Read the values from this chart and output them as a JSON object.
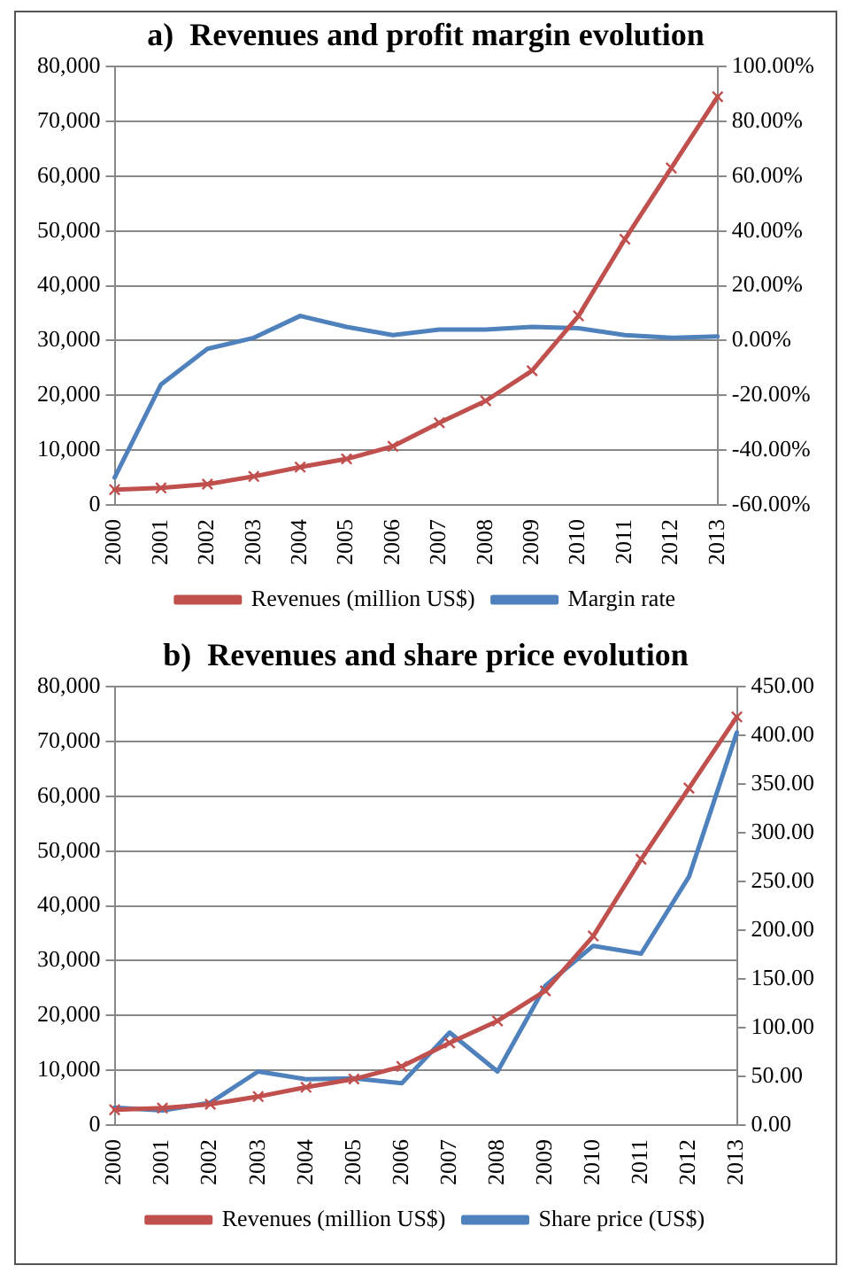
{
  "chart_data": [
    {
      "type": "line",
      "title": "a)  Revenues and profit margin evolution",
      "categories": [
        "2000",
        "2001",
        "2002",
        "2003",
        "2004",
        "2005",
        "2006",
        "2007",
        "2008",
        "2009",
        "2010",
        "2011",
        "2012",
        "2013"
      ],
      "series": [
        {
          "name": "Revenues (million US$)",
          "color": "#c0504d",
          "marker": "cross",
          "values": [
            2800,
            3100,
            3800,
            5200,
            6900,
            8400,
            10700,
            15000,
            19000,
            24500,
            34500,
            48500,
            61500,
            74500
          ]
        },
        {
          "name": "Margin rate",
          "color": "#4f81bd",
          "marker": "none",
          "axis": "y2",
          "values": [
            -50,
            -16,
            -3,
            1,
            9,
            5,
            2,
            4,
            4,
            5,
            4.5,
            2,
            1,
            1.5
          ]
        }
      ],
      "ylim": [
        0,
        80000
      ],
      "yticks": [
        {
          "value": 0,
          "label": "0"
        },
        {
          "value": 10000,
          "label": "10,000"
        },
        {
          "value": 20000,
          "label": "20,000"
        },
        {
          "value": 30000,
          "label": "30,000"
        },
        {
          "value": 40000,
          "label": "40,000"
        },
        {
          "value": 50000,
          "label": "50,000"
        },
        {
          "value": 60000,
          "label": "60,000"
        },
        {
          "value": 70000,
          "label": "70,000"
        },
        {
          "value": 80000,
          "label": "80,000"
        }
      ],
      "y2lim": [
        -60,
        100
      ],
      "y2ticks": [
        {
          "value": -60,
          "label": "-60.00%"
        },
        {
          "value": -40,
          "label": "-40.00%"
        },
        {
          "value": -20,
          "label": "-20.00%"
        },
        {
          "value": 0,
          "label": "0.00%"
        },
        {
          "value": 20,
          "label": "20.00%"
        },
        {
          "value": 40,
          "label": "40.00%"
        },
        {
          "value": 60,
          "label": "60.00%"
        },
        {
          "value": 80,
          "label": "80.00%"
        },
        {
          "value": 100,
          "label": "100.00%"
        }
      ],
      "grid": "y",
      "legend": "bottom",
      "line_style": "solid"
    },
    {
      "type": "line",
      "title": "b)  Revenues and share price evolution",
      "categories": [
        "2000",
        "2001",
        "2002",
        "2003",
        "2004",
        "2005",
        "2006",
        "2007",
        "2008",
        "2009",
        "2010",
        "2011",
        "2012",
        "2013"
      ],
      "series": [
        {
          "name": "Revenues (million US$)",
          "color": "#c0504d",
          "marker": "cross",
          "values": [
            2800,
            3100,
            3800,
            5200,
            6900,
            8400,
            10700,
            15000,
            19000,
            24500,
            34500,
            48500,
            61500,
            74500
          ]
        },
        {
          "name": "Share price (US$)",
          "color": "#4f81bd",
          "marker": "none",
          "axis": "y2",
          "values": [
            18,
            15,
            23,
            55,
            47,
            48,
            43,
            95,
            55,
            143,
            184,
            176,
            255,
            403
          ]
        }
      ],
      "ylim": [
        0,
        80000
      ],
      "yticks": [
        {
          "value": 0,
          "label": "0"
        },
        {
          "value": 10000,
          "label": "10,000"
        },
        {
          "value": 20000,
          "label": "20,000"
        },
        {
          "value": 30000,
          "label": "30,000"
        },
        {
          "value": 40000,
          "label": "40,000"
        },
        {
          "value": 50000,
          "label": "50,000"
        },
        {
          "value": 60000,
          "label": "60,000"
        },
        {
          "value": 70000,
          "label": "70,000"
        },
        {
          "value": 80000,
          "label": "80,000"
        }
      ],
      "y2lim": [
        0,
        450
      ],
      "y2ticks": [
        {
          "value": 0,
          "label": "0.00"
        },
        {
          "value": 50,
          "label": "50.00"
        },
        {
          "value": 100,
          "label": "100.00"
        },
        {
          "value": 150,
          "label": "150.00"
        },
        {
          "value": 200,
          "label": "200.00"
        },
        {
          "value": 250,
          "label": "250.00"
        },
        {
          "value": 300,
          "label": "300.00"
        },
        {
          "value": 350,
          "label": "350.00"
        },
        {
          "value": 400,
          "label": "400.00"
        },
        {
          "value": 450,
          "label": "450.00"
        }
      ],
      "grid": "y",
      "legend": "bottom",
      "line_style": "solid"
    }
  ]
}
